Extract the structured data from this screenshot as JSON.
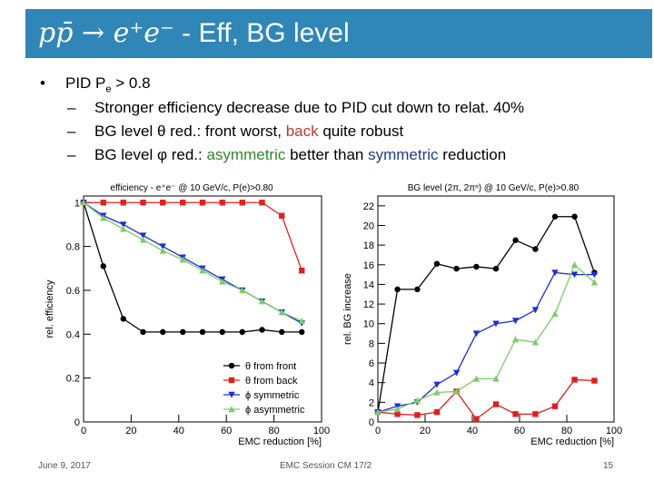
{
  "header": {
    "title_math": "pp̄ → e⁺e⁻",
    "title_rest": " - Eff, BG level"
  },
  "bullets": {
    "main_prefix": "PID P",
    "main_sub": "e",
    "main_suffix": " > 0.8",
    "items": [
      {
        "parts": [
          {
            "text": "Stronger efficiency decrease due to PID cut down to relat. 40%",
            "color": "black"
          }
        ]
      },
      {
        "parts": [
          {
            "text": "BG level θ red.: front worst, ",
            "color": "black"
          },
          {
            "text": "back",
            "color": "red"
          },
          {
            "text": " quite robust",
            "color": "black"
          }
        ]
      },
      {
        "parts": [
          {
            "text": "BG level φ red.: ",
            "color": "black"
          },
          {
            "text": "asymmetric",
            "color": "green"
          },
          {
            "text": " better than ",
            "color": "black"
          },
          {
            "text": "symmetric",
            "color": "blue"
          },
          {
            "text": " reduction",
            "color": "black"
          }
        ]
      }
    ]
  },
  "footer": {
    "date": "June 9, 2017",
    "event": "EMC Session CM 17/2",
    "page": "15"
  },
  "colors": {
    "title_bg": "#2f86b7",
    "front": "#000000",
    "back": "#e02020",
    "symmetric": "#1a2fd0",
    "asymmetric": "#7ccc6a"
  },
  "chart_data": [
    {
      "type": "line",
      "title": "efficiency - e⁺e⁻ @ 10 GeV/c, P(e)>0.80",
      "xlabel": "EMC reduction [%]",
      "ylabel": "rel. efficiency",
      "xlim": [
        0,
        100
      ],
      "ylim": [
        0,
        1.03
      ],
      "xticks": [
        0,
        20,
        40,
        60,
        80,
        100
      ],
      "yticks": [
        0,
        0.2,
        0.4,
        0.6,
        0.8,
        1
      ],
      "ytick_labels": [
        "0",
        "0.2",
        "0.4",
        "0.6",
        "0.8",
        "1"
      ],
      "legend_position": "bottom-right",
      "series": [
        {
          "name": "θ from front",
          "marker": "circle",
          "color": "#000000",
          "x": [
            0,
            8.3,
            16.7,
            25,
            33.3,
            41.7,
            50,
            58.3,
            66.7,
            75,
            83.3,
            91.7
          ],
          "y": [
            1.0,
            0.71,
            0.47,
            0.41,
            0.41,
            0.41,
            0.41,
            0.41,
            0.41,
            0.42,
            0.41,
            0.41
          ]
        },
        {
          "name": "θ from back",
          "marker": "square",
          "color": "#e02020",
          "x": [
            0,
            8.3,
            16.7,
            25,
            33.3,
            41.7,
            50,
            58.3,
            66.7,
            75,
            83.3,
            91.7
          ],
          "y": [
            1.0,
            1.0,
            1.0,
            1.0,
            1.0,
            1.0,
            1.0,
            1.0,
            1.0,
            1.0,
            0.94,
            0.69
          ]
        },
        {
          "name": "ϕ symmetric",
          "marker": "triangle-down",
          "color": "#1a2fd0",
          "x": [
            0,
            8.3,
            16.7,
            25,
            33.3,
            41.7,
            50,
            58.3,
            66.7,
            75,
            83.3,
            91.7
          ],
          "y": [
            1.0,
            0.94,
            0.9,
            0.85,
            0.8,
            0.75,
            0.7,
            0.65,
            0.6,
            0.55,
            0.5,
            0.45
          ]
        },
        {
          "name": "ϕ asymmetric",
          "marker": "triangle-up",
          "color": "#7ccc6a",
          "x": [
            0,
            8.3,
            16.7,
            25,
            33.3,
            41.7,
            50,
            58.3,
            66.7,
            75,
            83.3,
            91.7
          ],
          "y": [
            1.0,
            0.93,
            0.88,
            0.83,
            0.78,
            0.74,
            0.69,
            0.64,
            0.6,
            0.55,
            0.5,
            0.46
          ]
        }
      ]
    },
    {
      "type": "line",
      "title": "BG level (2π, 2πⁿ) @ 10 GeV/c, P(e)>0.80",
      "xlabel": "EMC reduction [%]",
      "ylabel": "rel. BG increase",
      "xlim": [
        0,
        100
      ],
      "ylim": [
        0,
        23
      ],
      "xticks": [
        0,
        20,
        40,
        60,
        80,
        100
      ],
      "yticks": [
        0,
        2,
        4,
        6,
        8,
        10,
        12,
        14,
        16,
        18,
        20,
        22
      ],
      "series": [
        {
          "name": "θ from front",
          "marker": "circle",
          "color": "#000000",
          "x": [
            0,
            8.3,
            16.7,
            25,
            33.3,
            41.7,
            50,
            58.3,
            66.7,
            75,
            83.3,
            91.7
          ],
          "y": [
            1.0,
            13.5,
            13.5,
            16.1,
            15.6,
            15.8,
            15.6,
            18.5,
            17.6,
            20.9,
            20.9,
            15.2
          ]
        },
        {
          "name": "θ from back",
          "marker": "square",
          "color": "#e02020",
          "x": [
            0,
            8.3,
            16.7,
            25,
            33.3,
            41.7,
            50,
            58.3,
            66.7,
            75,
            83.3,
            91.7
          ],
          "y": [
            1.0,
            0.8,
            0.7,
            1.0,
            3.1,
            0.3,
            1.8,
            0.8,
            0.8,
            1.6,
            4.3,
            4.2
          ]
        },
        {
          "name": "ϕ symmetric",
          "marker": "triangle-down",
          "color": "#1a2fd0",
          "x": [
            0,
            8.3,
            16.7,
            25,
            33.3,
            41.7,
            50,
            58.3,
            66.7,
            75,
            83.3,
            91.7
          ],
          "y": [
            1.0,
            1.6,
            2.0,
            3.8,
            5.0,
            9.0,
            10.0,
            10.3,
            11.4,
            15.2,
            15.0,
            15.0
          ]
        },
        {
          "name": "ϕ asymmetric",
          "marker": "triangle-up",
          "color": "#7ccc6a",
          "x": [
            0,
            8.3,
            16.7,
            25,
            33.3,
            41.7,
            50,
            58.3,
            66.7,
            75,
            83.3,
            91.7
          ],
          "y": [
            1.0,
            1.3,
            2.2,
            3.0,
            3.1,
            4.4,
            4.4,
            8.4,
            8.1,
            11.0,
            16.0,
            14.2
          ]
        }
      ]
    }
  ]
}
